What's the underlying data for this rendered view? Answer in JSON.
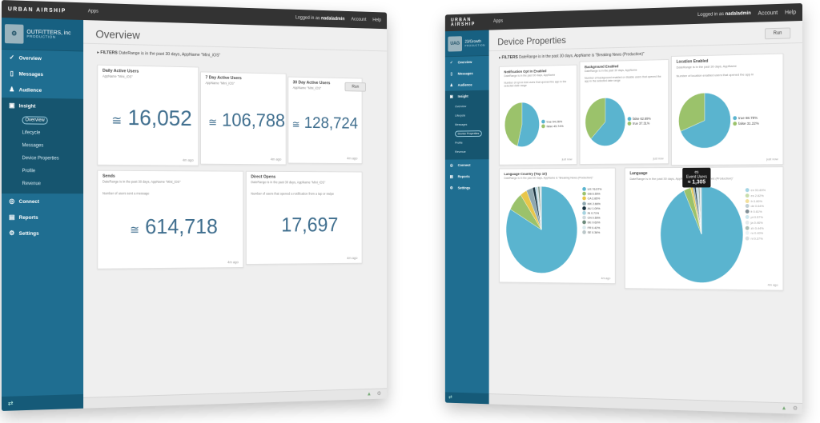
{
  "topbar": {
    "brand": "URBAN AIRSHIP",
    "apps": "Apps",
    "logged_in": "Logged in as",
    "user": "nadaladmin",
    "account": "Account",
    "help": "Help"
  },
  "win1": {
    "org": "OUTFITTERS, inc",
    "env": "PRODUCTION",
    "nav": {
      "overview": "Overview",
      "messages": "Messages",
      "audience": "Audience",
      "insight": "Insight",
      "connect": "Connect",
      "reports": "Reports",
      "settings": "Settings"
    },
    "insight_sub": [
      "Overview",
      "Lifecycle",
      "Messages",
      "Device Properties",
      "Profile",
      "Revenue"
    ],
    "title": "Overview",
    "filters_label": "FILTERS",
    "filters_text": "DateRange is in the past 30 days, AppName \"Mini_iOS\"",
    "run": "Run",
    "cards": {
      "dau": {
        "title": "Daily Active Users",
        "sub": "AppName \"Mini_iOS\"",
        "value": "16,052",
        "ago": "4m ago"
      },
      "wau": {
        "title": "7 Day Active Users",
        "sub": "AppName \"Mini_iOS\"",
        "value": "106,788",
        "ago": "4m ago"
      },
      "mau": {
        "title": "30 Day Active Users",
        "sub": "AppName \"Mini_iOS\"",
        "value": "128,724",
        "ago": "4m ago"
      },
      "sends": {
        "title": "Sends",
        "sub": "DateRange is in the past 30 days, AppName \"Mini_iOS\"",
        "desc": "Number of users sent a message",
        "value": "614,718",
        "ago": "4m ago"
      },
      "opens": {
        "title": "Direct Opens",
        "sub": "DateRange is in the past 30 days, AppName \"Mini_iOS\"",
        "desc": "Number of users that opened a notification from a tap or swipe",
        "value": "17,697",
        "ago": "4m ago"
      }
    },
    "approx": "≅"
  },
  "win2": {
    "org": "23/Growth",
    "env": "PRODUCTION",
    "logo": "UAG",
    "nav": {
      "overview": "Overview",
      "messages": "Messages",
      "audience": "Audience",
      "insight": "Insight",
      "connect": "Connect",
      "reports": "Reports",
      "settings": "Settings"
    },
    "insight_sub": [
      "Overview",
      "Lifecycle",
      "Messages",
      "Device Properties",
      "Profile",
      "Revenue"
    ],
    "title": "Device Properties",
    "filters_label": "FILTERS",
    "filters_text": "DateRange is in the past 30 days, AppName is \"Breaking News (Production)\"",
    "run": "Run",
    "cards": {
      "notif": {
        "title": "Notification Opt In Enabled",
        "sub": "DateRange is in the past 30 days, AppName",
        "desc": "Number of opt-in test users that opened the app in the selected date range",
        "legend": [
          "true 54.26%",
          "false 45.74%"
        ],
        "ago": "just now"
      },
      "bg": {
        "title": "Background Enabled",
        "sub": "DateRange is in the past 30 days, AppName",
        "desc": "Number of background enabled or disable users that opened the app in the selected date range",
        "legend": [
          "false 62.69%",
          "true 37.31%"
        ],
        "ago": "just now"
      },
      "loc": {
        "title": "Location Enabled",
        "sub": "DateRange is in the past 30 days, AppName",
        "desc": "Number of location enabled users that opened the app in",
        "legend": [
          "true 68.78%",
          "false 31.22%"
        ],
        "ago": "just now"
      },
      "country": {
        "title": "Language Country (Top 10)",
        "sub": "DateRange is in the past 30 days, AppName is \"Breaking News (Production)\"",
        "legend": [
          "US 76.57%",
          "GB 6.55%",
          "CA 2.85%",
          "MX 2.66%",
          "AU 1.09%",
          "IN 0.71%",
          "CN 0.55%",
          "DE 0.63%",
          "FR 0.42%",
          "SE 0.36%"
        ],
        "ago": "4m ago"
      },
      "lang": {
        "title": "Language",
        "sub": "DateRange is in the past 30 days, AppName is \"Breaking News (Production)\"",
        "legend": [
          "en 93.89%",
          "es 2.82%",
          "fr 0.80%",
          "de 0.64%",
          "it 0.61%",
          "pt 0.57%",
          "ja 0.46%",
          "zh 0.44%",
          "ru 0.40%",
          "nl 0.37%"
        ],
        "ago": "4m ago"
      }
    },
    "tooltip": {
      "lang": "es",
      "label": "Event Users",
      "value": "≈ 1,305"
    }
  },
  "colors": {
    "blue": "#5ab4cf",
    "green": "#9bc26b",
    "sidebar": "#1f6e91",
    "topbar": "#333333"
  }
}
